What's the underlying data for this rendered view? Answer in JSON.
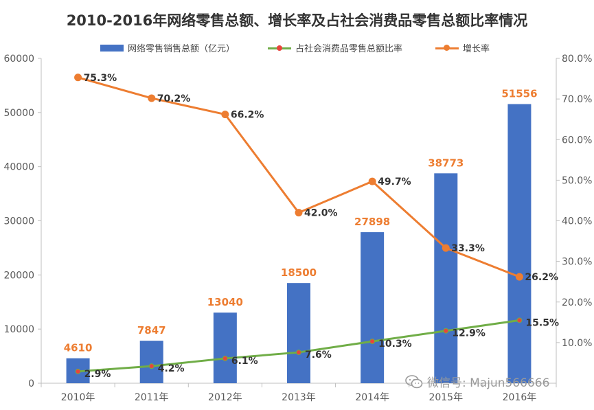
{
  "chart_data": {
    "type": "bar",
    "title": "2010-2016年网络零售总额、增长率及占社会消费品零售总额比率情况",
    "categories": [
      "2010年",
      "2011年",
      "2012年",
      "2013年",
      "2014年",
      "2015年",
      "2016年"
    ],
    "y_left": {
      "min": 0,
      "max": 60000,
      "ticks": [
        0,
        10000,
        20000,
        30000,
        40000,
        50000,
        60000
      ],
      "tick_labels": [
        "0",
        "10000",
        "20000",
        "30000",
        "40000",
        "50000",
        "60000"
      ]
    },
    "y_right": {
      "min": 0,
      "max": 80,
      "ticks": [
        10,
        20,
        30,
        40,
        50,
        60,
        70,
        80
      ],
      "tick_labels": [
        "10.0%",
        "20.0%",
        "30.0%",
        "40.0%",
        "50.0%",
        "60.0%",
        "70.0%",
        "80.0%"
      ]
    },
    "grid": false,
    "legend_position": "top",
    "series": [
      {
        "name": "网络零售销售总额（亿元）",
        "type": "bar",
        "axis": "left",
        "color": "#4472C4",
        "label_color": "#ED7D31",
        "values": [
          4610,
          7847,
          13040,
          18500,
          27898,
          38773,
          51556
        ],
        "labels": [
          "4610",
          "7847",
          "13040",
          "18500",
          "27898",
          "38773",
          "51556"
        ]
      },
      {
        "name": "占社会消费品零售总额比率",
        "type": "line",
        "axis": "right",
        "color": "#70AD47",
        "marker_color": "#E8453C",
        "label_color": "#333333",
        "values": [
          2.9,
          4.2,
          6.1,
          7.6,
          10.3,
          12.9,
          15.5
        ],
        "labels": [
          "2.9%",
          "4.2%",
          "6.1%",
          "7.6%",
          "10.3%",
          "12.9%",
          "15.5%"
        ]
      },
      {
        "name": "增长率",
        "type": "line",
        "axis": "right",
        "color": "#ED7D31",
        "marker_color": "#ED7D31",
        "label_color": "#333333",
        "values": [
          75.3,
          70.2,
          66.2,
          42.0,
          49.7,
          33.3,
          26.2
        ],
        "labels": [
          "75.3%",
          "70.2%",
          "66.2%",
          "42.0%",
          "49.7%",
          "33.3%",
          "26.2%"
        ]
      }
    ]
  },
  "watermark": {
    "text": "微信号: Majun566666",
    "icon": "wechat-icon"
  }
}
